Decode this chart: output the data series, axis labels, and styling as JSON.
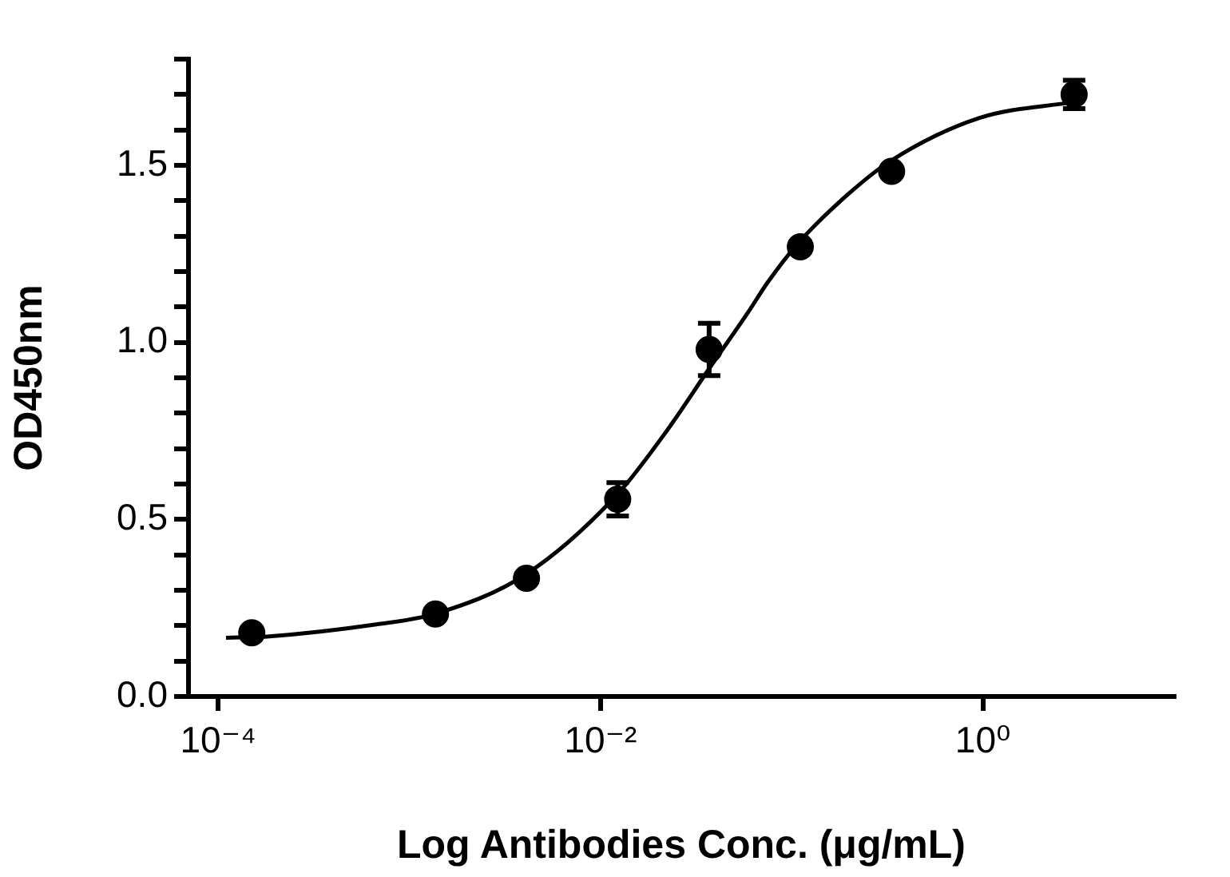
{
  "chart_data": {
    "type": "scatter",
    "xlabel": "Log Antibodies Conc. (μg/mL)",
    "ylabel": "OD450nm",
    "log": "x",
    "grid": false,
    "legend": false,
    "xlim": [
      7.2e-05,
      10
    ],
    "xticks": [
      {
        "value": 0.0001,
        "label": "10⁻⁴"
      },
      {
        "value": 0.01,
        "label": "10⁻²"
      },
      {
        "value": 1,
        "label": "10⁰"
      }
    ],
    "ylim": [
      0,
      1.8
    ],
    "yticks": [
      {
        "value": 0,
        "label": "0.0"
      },
      {
        "value": 0.1,
        "label": null
      },
      {
        "value": 0.2,
        "label": null
      },
      {
        "value": 0.3,
        "label": null
      },
      {
        "value": 0.4,
        "label": null
      },
      {
        "value": 0.5,
        "label": "0.5"
      },
      {
        "value": 0.6,
        "label": null
      },
      {
        "value": 0.7,
        "label": null
      },
      {
        "value": 0.8,
        "label": null
      },
      {
        "value": 0.9,
        "label": null
      },
      {
        "value": 1,
        "label": "1.0"
      },
      {
        "value": 1.1,
        "label": null
      },
      {
        "value": 1.2,
        "label": null
      },
      {
        "value": 1.3,
        "label": null
      },
      {
        "value": 1.4,
        "label": null
      },
      {
        "value": 1.5,
        "label": "1.5"
      },
      {
        "value": 1.6,
        "label": null
      },
      {
        "value": 1.7,
        "label": null
      },
      {
        "value": 1.8,
        "label": null
      }
    ],
    "series": [
      {
        "color": "#000000",
        "marker": "circle",
        "x": [
          0.00015,
          0.00137,
          0.0041,
          0.0123,
          0.037,
          0.111,
          0.333,
          3
        ],
        "values": [
          0.18,
          0.233,
          0.334,
          0.557,
          0.98,
          1.27,
          1.483,
          1.7
        ],
        "errors": [
          null,
          null,
          null,
          0.047,
          0.074,
          null,
          null,
          0.04
        ]
      },
      {
        "type": "line",
        "color": "#000000",
        "marker": "none",
        "line_style": "solid",
        "x": [
          0.00011,
          0.000186,
          0.00066,
          0.00136,
          0.0041,
          0.0123,
          0.0224,
          0.037,
          0.059,
          0.075,
          0.108,
          0.195,
          0.33,
          0.96,
          2.99
        ],
        "values": [
          0.166,
          0.17,
          0.203,
          0.233,
          0.346,
          0.572,
          0.753,
          0.926,
          1.084,
          1.17,
          1.28,
          1.416,
          1.513,
          1.634,
          1.679
        ]
      }
    ]
  }
}
